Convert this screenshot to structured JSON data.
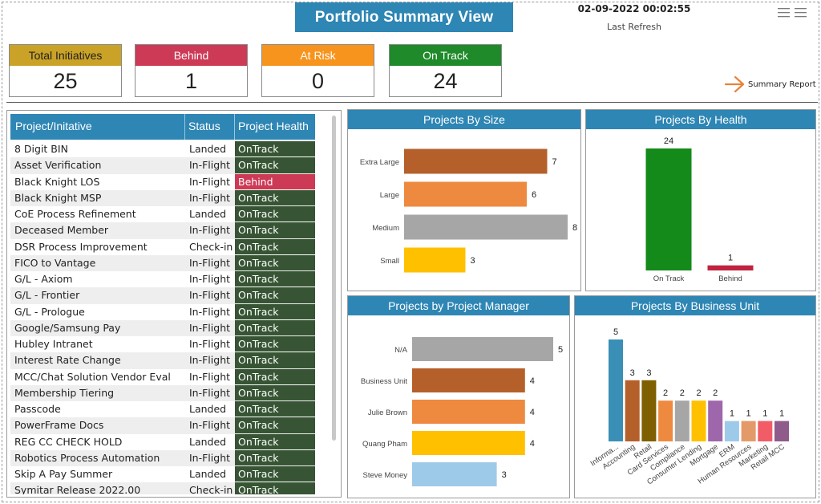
{
  "header": {
    "title": "Portfolio Summary View",
    "refresh_date": "02-09-2022 00:02:55",
    "refresh_label": "Last Refresh",
    "summary_link": "Summary Report"
  },
  "kpis": [
    {
      "label": "Total Initiatives",
      "value": "25",
      "color": "#c9a227"
    },
    {
      "label": "Behind",
      "value": "1",
      "color": "#cc3a55"
    },
    {
      "label": "At Risk",
      "value": "0",
      "color": "#f7941e"
    },
    {
      "label": "On Track",
      "value": "24",
      "color": "#1f8a2a"
    }
  ],
  "table": {
    "headers": [
      "Project/Initative",
      "Status",
      "Project Health"
    ],
    "rows": [
      {
        "name": "8 Digit BIN",
        "status": "Landed",
        "health": "OnTrack"
      },
      {
        "name": "Asset Verification",
        "status": "In-Flight",
        "health": "OnTrack"
      },
      {
        "name": "Black Knight LOS",
        "status": "In-Flight",
        "health": "Behind"
      },
      {
        "name": "Black Knight MSP",
        "status": "In-Flight",
        "health": "OnTrack"
      },
      {
        "name": "CoE Process Refinement",
        "status": "Landed",
        "health": "OnTrack"
      },
      {
        "name": "Deceased Member",
        "status": "In-Flight",
        "health": "OnTrack"
      },
      {
        "name": "DSR Process Improvement",
        "status": "Check-in",
        "health": "OnTrack"
      },
      {
        "name": "FICO to Vantage",
        "status": "In-Flight",
        "health": "OnTrack"
      },
      {
        "name": "G/L - Axiom",
        "status": "In-Flight",
        "health": "OnTrack"
      },
      {
        "name": "G/L - Frontier",
        "status": "In-Flight",
        "health": "OnTrack"
      },
      {
        "name": "G/L - Prologue",
        "status": "In-Flight",
        "health": "OnTrack"
      },
      {
        "name": "Google/Samsung Pay",
        "status": "In-Flight",
        "health": "OnTrack"
      },
      {
        "name": "Hubley Intranet",
        "status": "In-Flight",
        "health": "OnTrack"
      },
      {
        "name": "Interest Rate Change",
        "status": "In-Flight",
        "health": "OnTrack"
      },
      {
        "name": "MCC/Chat Solution Vendor Eval",
        "status": "In-Flight",
        "health": "OnTrack"
      },
      {
        "name": "Membership Tiering",
        "status": "In-Flight",
        "health": "OnTrack"
      },
      {
        "name": "Passcode",
        "status": "Landed",
        "health": "OnTrack"
      },
      {
        "name": "PowerFrame Docs",
        "status": "In-Flight",
        "health": "OnTrack"
      },
      {
        "name": "REG CC CHECK HOLD",
        "status": "Landed",
        "health": "OnTrack"
      },
      {
        "name": "Robotics Process Automation",
        "status": "In-Flight",
        "health": "OnTrack"
      },
      {
        "name": "Skip A Pay Summer",
        "status": "Landed",
        "health": "OnTrack"
      },
      {
        "name": "Symitar Release 2022.00",
        "status": "Check-in",
        "health": "OnTrack"
      }
    ]
  },
  "chart_data": [
    {
      "id": "size",
      "type": "bar",
      "orientation": "horizontal",
      "title": "Projects By Size",
      "categories": [
        "Extra Large",
        "Large",
        "Medium",
        "Small"
      ],
      "values": [
        7,
        6,
        8,
        3
      ],
      "colors": [
        "#b5602b",
        "#ed8a3f",
        "#a6a6a6",
        "#ffc000"
      ],
      "xlim": [
        0,
        8
      ]
    },
    {
      "id": "health",
      "type": "bar",
      "orientation": "vertical",
      "title": "Projects By Health",
      "categories": [
        "On Track",
        "Behind"
      ],
      "values": [
        24,
        1
      ],
      "colors": [
        "#138a1a",
        "#c0233f"
      ],
      "ylim": [
        0,
        24
      ]
    },
    {
      "id": "manager",
      "type": "bar",
      "orientation": "horizontal",
      "title": "Projects by Project Manager",
      "categories": [
        "N/A",
        "Business Unit",
        "Julie Brown",
        "Quang Pham",
        "Steve Money"
      ],
      "values": [
        5,
        4,
        4,
        4,
        3
      ],
      "colors": [
        "#a6a6a6",
        "#b5602b",
        "#ed8a3f",
        "#ffc000",
        "#9ecae9"
      ],
      "xlim": [
        0,
        5
      ]
    },
    {
      "id": "unit",
      "type": "bar",
      "orientation": "vertical",
      "title": "Projects By Business Unit",
      "categories": [
        "Informa...",
        "Accounting",
        "Retail",
        "Card Services",
        "Compliance",
        "Consumer Lending",
        "Mortgage",
        "ERM",
        "Human Resources",
        "Marketing",
        "Retail MCC"
      ],
      "values": [
        5,
        3,
        3,
        2,
        2,
        2,
        2,
        1,
        1,
        1,
        1
      ],
      "colors": [
        "#3a8fb7",
        "#b5602b",
        "#7f6000",
        "#ed8a3f",
        "#a6a6a6",
        "#ffc000",
        "#9e66ab",
        "#9ecae9",
        "#e39a68",
        "#f25c66",
        "#8e5b8a"
      ],
      "ylim": [
        0,
        5
      ]
    }
  ],
  "colors": {
    "accent": "#2e86b4",
    "ontrack": "#375534",
    "behind": "#cc3a55",
    "row_alt": "#eeeeee"
  }
}
